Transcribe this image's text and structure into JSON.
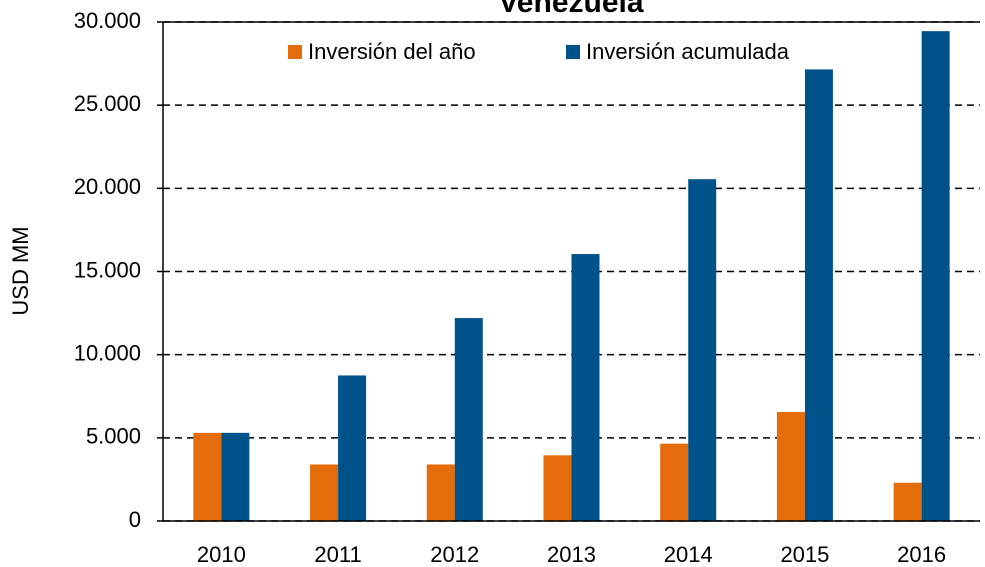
{
  "chart_data": {
    "type": "bar",
    "title": "Venezuela",
    "y_label": "USD MM",
    "categories": [
      "2010",
      "2011",
      "2012",
      "2013",
      "2014",
      "2015",
      "2016"
    ],
    "series": [
      {
        "name": "Inversión del año",
        "color": "#e46c0a",
        "values": [
          5300,
          3400,
          3400,
          3950,
          4650,
          6550,
          2300
        ]
      },
      {
        "name": "Inversión acumulada",
        "color": "#00538a",
        "values": [
          5300,
          8750,
          12200,
          16050,
          20550,
          27150,
          29450
        ]
      }
    ],
    "ylim": [
      0,
      30000
    ],
    "yticks": [
      {
        "value": 0,
        "label": "0"
      },
      {
        "value": 5000,
        "label": "5.000"
      },
      {
        "value": 10000,
        "label": "10.000"
      },
      {
        "value": 15000,
        "label": "15.000"
      },
      {
        "value": 20000,
        "label": "20.000"
      },
      {
        "value": 25000,
        "label": "25.000"
      },
      {
        "value": 30000,
        "label": "30.000"
      }
    ],
    "grid": true,
    "legend": "top"
  }
}
